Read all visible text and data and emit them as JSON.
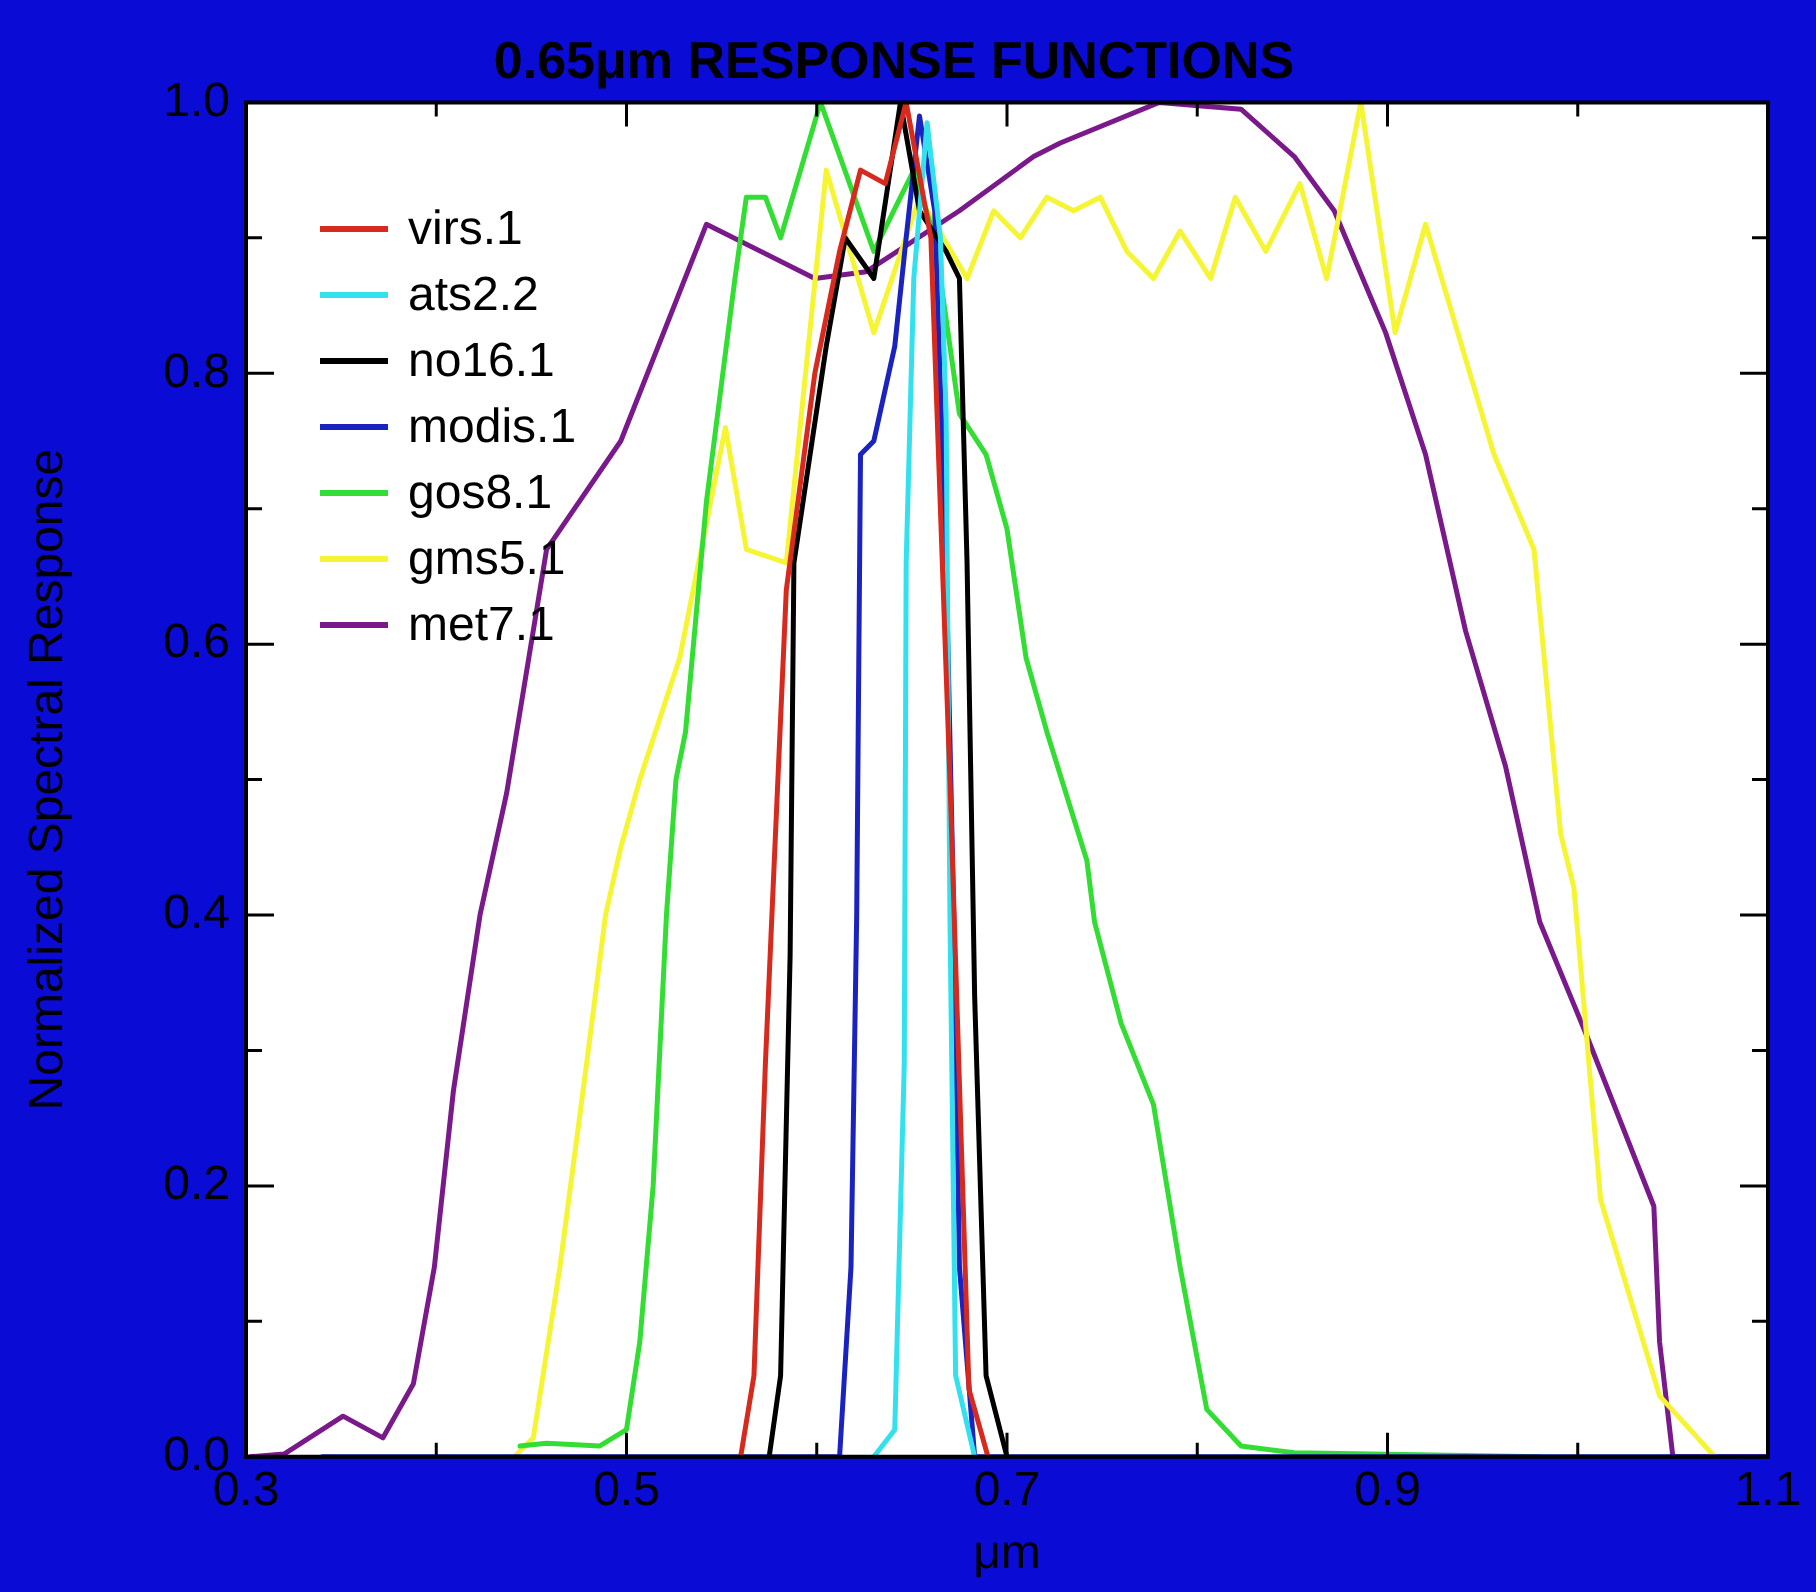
{
  "chart_data": {
    "type": "line",
    "title": "0.65μm RESPONSE FUNCTIONS",
    "xlabel": "μm",
    "ylabel": "Normalized Spectral Response",
    "xlim": [
      0.3,
      1.1
    ],
    "ylim": [
      0,
      1
    ],
    "xticks": [
      0.3,
      {
        "value": 0.4,
        "label": null
      },
      0.5,
      {
        "value": 0.6,
        "label": null
      },
      0.7,
      {
        "value": 0.8,
        "label": null
      },
      0.9,
      {
        "value": 1.0,
        "label": null
      },
      1.1
    ],
    "yticks": [
      {
        "value": 0,
        "label": "0.0"
      },
      {
        "value": 0.1,
        "label": null
      },
      0.2,
      {
        "value": 0.3,
        "label": null
      },
      0.4,
      {
        "value": 0.5,
        "label": null
      },
      0.6,
      {
        "value": 0.7,
        "label": null
      },
      0.8,
      {
        "value": 0.9,
        "label": null
      },
      {
        "value": 1,
        "label": "1.0"
      }
    ],
    "grid": false,
    "legend": "top left",
    "marker": "none",
    "line_style": "solid",
    "series": [
      {
        "name": "virs.1",
        "color": "#d62a1e",
        "x": [
          0.56,
          0.567,
          0.573,
          0.578,
          0.584,
          0.599,
          0.612,
          0.623,
          0.636,
          0.647,
          0.66,
          0.67,
          0.68,
          0.69
        ],
        "values": [
          0,
          0.06,
          0.29,
          0.45,
          0.64,
          0.8,
          0.89,
          0.95,
          0.94,
          1.0,
          0.9,
          0.5,
          0.05,
          0
        ]
      },
      {
        "name": "ats2.2",
        "color": "#33e0ee",
        "x": [
          0.63,
          0.641,
          0.646,
          0.647,
          0.651,
          0.658,
          0.665,
          0.668,
          0.67,
          0.673,
          0.683
        ],
        "values": [
          0,
          0.02,
          0.29,
          0.66,
          0.87,
          0.985,
          0.9,
          0.77,
          0.4,
          0.06,
          0
        ]
      },
      {
        "name": "no16.1",
        "color": "#000000",
        "x": [
          0.575,
          0.581,
          0.586,
          0.588,
          0.605,
          0.615,
          0.63,
          0.644,
          0.654,
          0.668,
          0.675,
          0.679,
          0.683,
          0.689,
          0.7
        ],
        "values": [
          0,
          0.06,
          0.37,
          0.66,
          0.82,
          0.9,
          0.87,
          1.0,
          0.92,
          0.89,
          0.87,
          0.66,
          0.34,
          0.06,
          0
        ]
      },
      {
        "name": "modis.1",
        "color": "#1a22c0",
        "x": [
          0.34,
          0.612,
          0.618,
          0.621,
          0.623,
          0.63,
          0.641,
          0.647,
          0.654,
          0.662,
          0.668,
          0.672,
          0.675,
          0.683,
          1.1
        ],
        "values": [
          0,
          0,
          0.14,
          0.4,
          0.74,
          0.75,
          0.82,
          0.9,
          0.99,
          0.92,
          0.66,
          0.4,
          0.14,
          0,
          0
        ]
      },
      {
        "name": "gos8.1",
        "color": "#33dd33",
        "x": [
          0.444,
          0.458,
          0.486,
          0.5,
          0.507,
          0.514,
          0.521,
          0.526,
          0.531,
          0.542,
          0.557,
          0.563,
          0.573,
          0.581,
          0.602,
          0.63,
          0.651,
          0.662,
          0.675,
          0.689,
          0.7,
          0.71,
          0.721,
          0.742,
          0.746,
          0.76,
          0.777,
          0.791,
          0.805,
          0.823,
          0.851,
          0.98
        ],
        "values": [
          0.008,
          0.01,
          0.008,
          0.02,
          0.085,
          0.2,
          0.4,
          0.5,
          0.535,
          0.705,
          0.87,
          0.93,
          0.93,
          0.9,
          1.0,
          0.89,
          0.95,
          0.9,
          0.77,
          0.74,
          0.685,
          0.59,
          0.535,
          0.44,
          0.395,
          0.32,
          0.26,
          0.14,
          0.035,
          0.008,
          0.003,
          0
        ]
      },
      {
        "name": "gms5.1",
        "color": "#f5f533",
        "x": [
          0.441,
          0.451,
          0.465,
          0.479,
          0.489,
          0.497,
          0.507,
          0.528,
          0.552,
          0.563,
          0.584,
          0.605,
          0.63,
          0.654,
          0.679,
          0.693,
          0.707,
          0.721,
          0.735,
          0.749,
          0.763,
          0.777,
          0.791,
          0.807,
          0.82,
          0.836,
          0.854,
          0.868,
          0.875,
          0.886,
          0.904,
          0.92,
          0.956,
          0.977,
          0.991,
          0.998,
          1.012,
          1.043,
          1.072
        ],
        "values": [
          0,
          0.014,
          0.14,
          0.29,
          0.4,
          0.45,
          0.5,
          0.59,
          0.76,
          0.67,
          0.66,
          0.95,
          0.83,
          0.93,
          0.87,
          0.92,
          0.9,
          0.93,
          0.92,
          0.93,
          0.89,
          0.87,
          0.905,
          0.87,
          0.93,
          0.89,
          0.94,
          0.87,
          0.92,
          1.0,
          0.83,
          0.91,
          0.74,
          0.67,
          0.46,
          0.42,
          0.19,
          0.045,
          0
        ]
      },
      {
        "name": "met7.1",
        "color": "#7a1a8a",
        "x": [
          0.302,
          0.32,
          0.351,
          0.372,
          0.388,
          0.399,
          0.409,
          0.423,
          0.437,
          0.458,
          0.497,
          0.542,
          0.599,
          0.626,
          0.675,
          0.714,
          0.728,
          0.78,
          0.823,
          0.851,
          0.872,
          0.899,
          0.92,
          0.941,
          0.962,
          0.98,
          1.005,
          1.04,
          1.043,
          1.05,
          1.1
        ],
        "values": [
          0,
          0.002,
          0.03,
          0.014,
          0.054,
          0.14,
          0.27,
          0.4,
          0.49,
          0.67,
          0.75,
          0.91,
          0.87,
          0.875,
          0.92,
          0.96,
          0.97,
          1.0,
          0.995,
          0.96,
          0.92,
          0.83,
          0.74,
          0.61,
          0.51,
          0.395,
          0.31,
          0.185,
          0.085,
          0,
          0
        ]
      }
    ]
  }
}
